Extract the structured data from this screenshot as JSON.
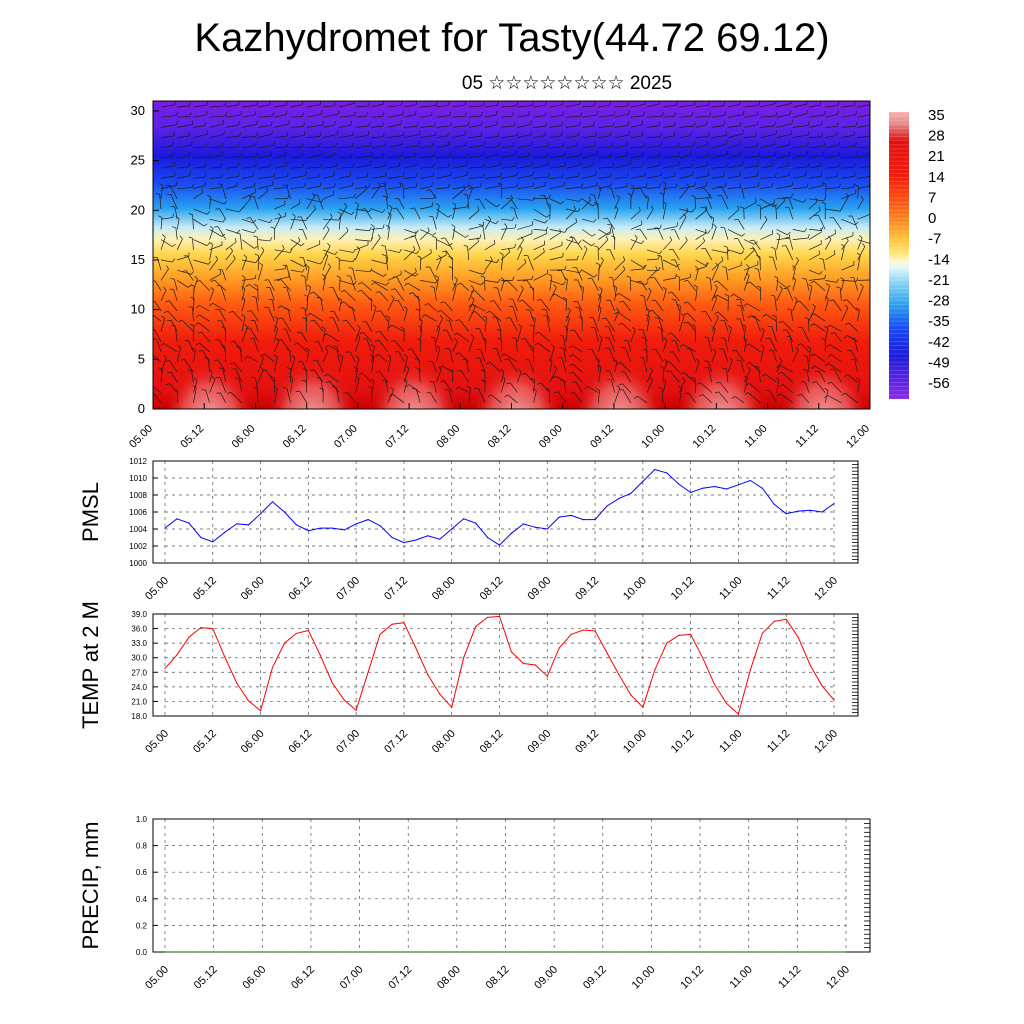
{
  "header": {
    "title": "Kazhydromet for Tasty(44.72 69.12)",
    "subtitle": "05 ☆☆☆☆☆☆☆☆ 2025"
  },
  "chart_data": [
    {
      "type": "heatmap",
      "title": "Kazhydromet for Tasty(44.72 69.12)",
      "subtitle": "05 ☆☆☆☆☆☆☆☆ 2025",
      "x_tick_labels": [
        "05.00",
        "05.12",
        "06.00",
        "06.12",
        "07.00",
        "07.12",
        "08.00",
        "08.12",
        "09.00",
        "09.12",
        "10.00",
        "10.12",
        "11.00",
        "11.12",
        "12.00"
      ],
      "y_tick_labels": [
        "0",
        "5",
        "10",
        "15",
        "20",
        "25",
        "30"
      ],
      "ylim": [
        0,
        31
      ],
      "colorbar_labels": [
        "35",
        "28",
        "21",
        "14",
        "7",
        "0",
        "-7",
        "-14",
        "-21",
        "-28",
        "-35",
        "-42",
        "-49",
        "-56"
      ],
      "colorbar_values": [
        35,
        28,
        21,
        14,
        7,
        0,
        -7,
        -14,
        -21,
        -28,
        -35,
        -42,
        -49,
        -56
      ],
      "colors": {
        "warm": "#e60000",
        "mid": "#ffd54a",
        "cool": "#29a3f0",
        "cold": "#7a1ce6"
      },
      "overlay": "wind barbs",
      "grid": false
    },
    {
      "type": "line",
      "ylabel": "PMSL",
      "ylim": [
        1000,
        1012
      ],
      "y_tick_labels": [
        "1000",
        "1002",
        "1004",
        "1006",
        "1008",
        "1010",
        "1012"
      ],
      "x_tick_labels": [
        "05.00",
        "05.12",
        "06.00",
        "06.12",
        "07.00",
        "07.12",
        "08.00",
        "08.12",
        "09.00",
        "09.12",
        "10.00",
        "10.12",
        "11.00",
        "11.12",
        "12.00"
      ],
      "grid": true,
      "series": [
        {
          "color": "#0000ff",
          "values": [
            1004.1,
            1005.2,
            1004.7,
            1003.0,
            1002.5,
            1003.6,
            1004.6,
            1004.5,
            1005.8,
            1007.2,
            1006.0,
            1004.5,
            1003.8,
            1004.1,
            1004.1,
            1003.9,
            1004.6,
            1005.1,
            1004.4,
            1003.0,
            1002.4,
            1002.7,
            1003.2,
            1002.8,
            1004.0,
            1005.2,
            1004.7,
            1003.0,
            1002.1,
            1003.5,
            1004.6,
            1004.2,
            1004.0,
            1005.4,
            1005.6,
            1005.1,
            1005.1,
            1006.7,
            1007.6,
            1008.2,
            1009.6,
            1011.0,
            1010.6,
            1009.3,
            1008.3,
            1008.8,
            1009.0,
            1008.7,
            1009.2,
            1009.7,
            1008.8,
            1006.9,
            1005.8,
            1006.1,
            1006.2,
            1006.0,
            1007.0
          ]
        }
      ]
    },
    {
      "type": "line",
      "ylabel": "TEMP at 2 M",
      "ylim": [
        18,
        39
      ],
      "y_tick_labels": [
        "18.0",
        "21.0",
        "24.0",
        "27.0",
        "30.0",
        "33.0",
        "36.0",
        "39.0"
      ],
      "x_tick_labels": [
        "05.00",
        "05.12",
        "06.00",
        "06.12",
        "07.00",
        "07.12",
        "08.00",
        "08.12",
        "09.00",
        "09.12",
        "10.00",
        "10.12",
        "11.00",
        "11.12",
        "12.00"
      ],
      "grid": true,
      "series": [
        {
          "color": "#ff0000",
          "values": [
            27.8,
            30.6,
            34.2,
            36.2,
            36.0,
            30.2,
            24.8,
            21.1,
            19.1,
            28.0,
            33.0,
            35.0,
            35.6,
            30.5,
            24.8,
            21.3,
            19.2,
            27.0,
            34.8,
            36.9,
            37.2,
            32.0,
            26.5,
            22.5,
            19.8,
            30.0,
            36.4,
            38.3,
            38.5,
            31.2,
            28.8,
            28.5,
            26.2,
            32.0,
            34.8,
            35.7,
            35.5,
            31.0,
            26.5,
            22.3,
            19.8,
            27.5,
            33.0,
            34.6,
            34.8,
            30.0,
            24.5,
            20.6,
            18.4,
            27.5,
            35.0,
            37.5,
            37.9,
            34.2,
            28.5,
            24.2,
            21.3
          ]
        }
      ]
    },
    {
      "type": "line",
      "ylabel": "PRECIP, mm",
      "ylim": [
        0,
        1
      ],
      "y_tick_labels": [
        "0.0",
        "0.2",
        "0.4",
        "0.6",
        "0.8",
        "1.0"
      ],
      "x_tick_labels": [
        "05.00",
        "05.12",
        "06.00",
        "06.12",
        "07.00",
        "07.12",
        "08.00",
        "08.12",
        "09.00",
        "09.12",
        "10.00",
        "10.12",
        "11.00",
        "11.12",
        "12.00"
      ],
      "grid": true,
      "series": [
        {
          "color": "#006400",
          "values": [
            0,
            0,
            0,
            0,
            0,
            0,
            0,
            0,
            0,
            0,
            0,
            0,
            0,
            0,
            0,
            0,
            0,
            0,
            0,
            0,
            0,
            0,
            0,
            0,
            0,
            0,
            0,
            0,
            0,
            0,
            0,
            0,
            0,
            0,
            0,
            0,
            0,
            0,
            0,
            0,
            0,
            0,
            0,
            0,
            0,
            0,
            0,
            0,
            0,
            0,
            0,
            0,
            0,
            0,
            0,
            0,
            0
          ]
        }
      ]
    }
  ]
}
